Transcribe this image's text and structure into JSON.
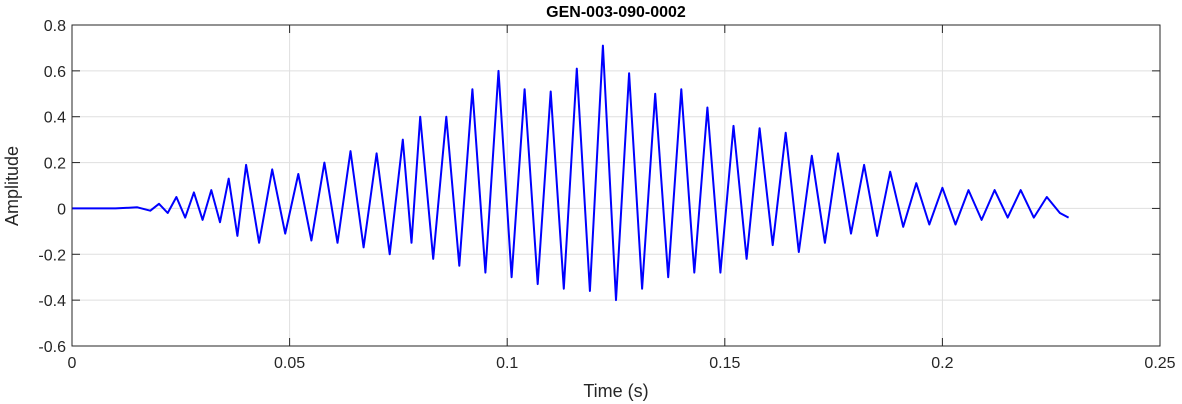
{
  "chart_data": {
    "type": "line",
    "title": "GEN-003-090-0002",
    "xlabel": "Time (s)",
    "ylabel": "Amplitude",
    "xlim": [
      0,
      0.25
    ],
    "ylim": [
      -0.6,
      0.8
    ],
    "xticks": [
      0,
      0.05,
      0.1,
      0.15,
      0.2,
      0.25
    ],
    "xtick_labels": [
      "0",
      "0.05",
      "0.1",
      "0.15",
      "0.2",
      "0.25"
    ],
    "yticks": [
      -0.6,
      -0.4,
      -0.2,
      0,
      0.2,
      0.4,
      0.6,
      0.8
    ],
    "ytick_labels": [
      "-0.6",
      "-0.4",
      "-0.2",
      "0",
      "0.2",
      "0.4",
      "0.6",
      "0.8"
    ],
    "grid": true,
    "line_color": "#0000ff",
    "series": [
      {
        "x": [
          0,
          0.01,
          0.015,
          0.018,
          0.02,
          0.022,
          0.024,
          0.026,
          0.028,
          0.03,
          0.032,
          0.034,
          0.036,
          0.038,
          0.04,
          0.043,
          0.046,
          0.049,
          0.052,
          0.055,
          0.058,
          0.061,
          0.064,
          0.067,
          0.07,
          0.073,
          0.076,
          0.078,
          0.08,
          0.083,
          0.086,
          0.089,
          0.092,
          0.095,
          0.098,
          0.101,
          0.104,
          0.107,
          0.11,
          0.113,
          0.116,
          0.119,
          0.122,
          0.125,
          0.128,
          0.131,
          0.134,
          0.137,
          0.14,
          0.143,
          0.146,
          0.149,
          0.152,
          0.155,
          0.158,
          0.161,
          0.164,
          0.167,
          0.17,
          0.173,
          0.176,
          0.179,
          0.182,
          0.185,
          0.188,
          0.191,
          0.194,
          0.197,
          0.2,
          0.203,
          0.206,
          0.209,
          0.212,
          0.215,
          0.218,
          0.221,
          0.224,
          0.227,
          0.229
        ],
        "y": [
          0,
          0,
          0.005,
          -0.01,
          0.02,
          -0.02,
          0.05,
          -0.04,
          0.07,
          -0.05,
          0.08,
          -0.06,
          0.13,
          -0.12,
          0.19,
          -0.15,
          0.17,
          -0.11,
          0.15,
          -0.14,
          0.2,
          -0.15,
          0.25,
          -0.17,
          0.24,
          -0.2,
          0.3,
          -0.15,
          0.4,
          -0.22,
          0.4,
          -0.25,
          0.52,
          -0.28,
          0.6,
          -0.3,
          0.52,
          -0.33,
          0.51,
          -0.35,
          0.61,
          -0.36,
          0.71,
          -0.4,
          0.59,
          -0.35,
          0.5,
          -0.3,
          0.52,
          -0.28,
          0.44,
          -0.28,
          0.36,
          -0.22,
          0.35,
          -0.16,
          0.33,
          -0.19,
          0.23,
          -0.15,
          0.24,
          -0.11,
          0.19,
          -0.12,
          0.16,
          -0.08,
          0.11,
          -0.07,
          0.09,
          -0.07,
          0.08,
          -0.05,
          0.08,
          -0.04,
          0.08,
          -0.04,
          0.05,
          -0.02,
          -0.04
        ]
      }
    ]
  }
}
